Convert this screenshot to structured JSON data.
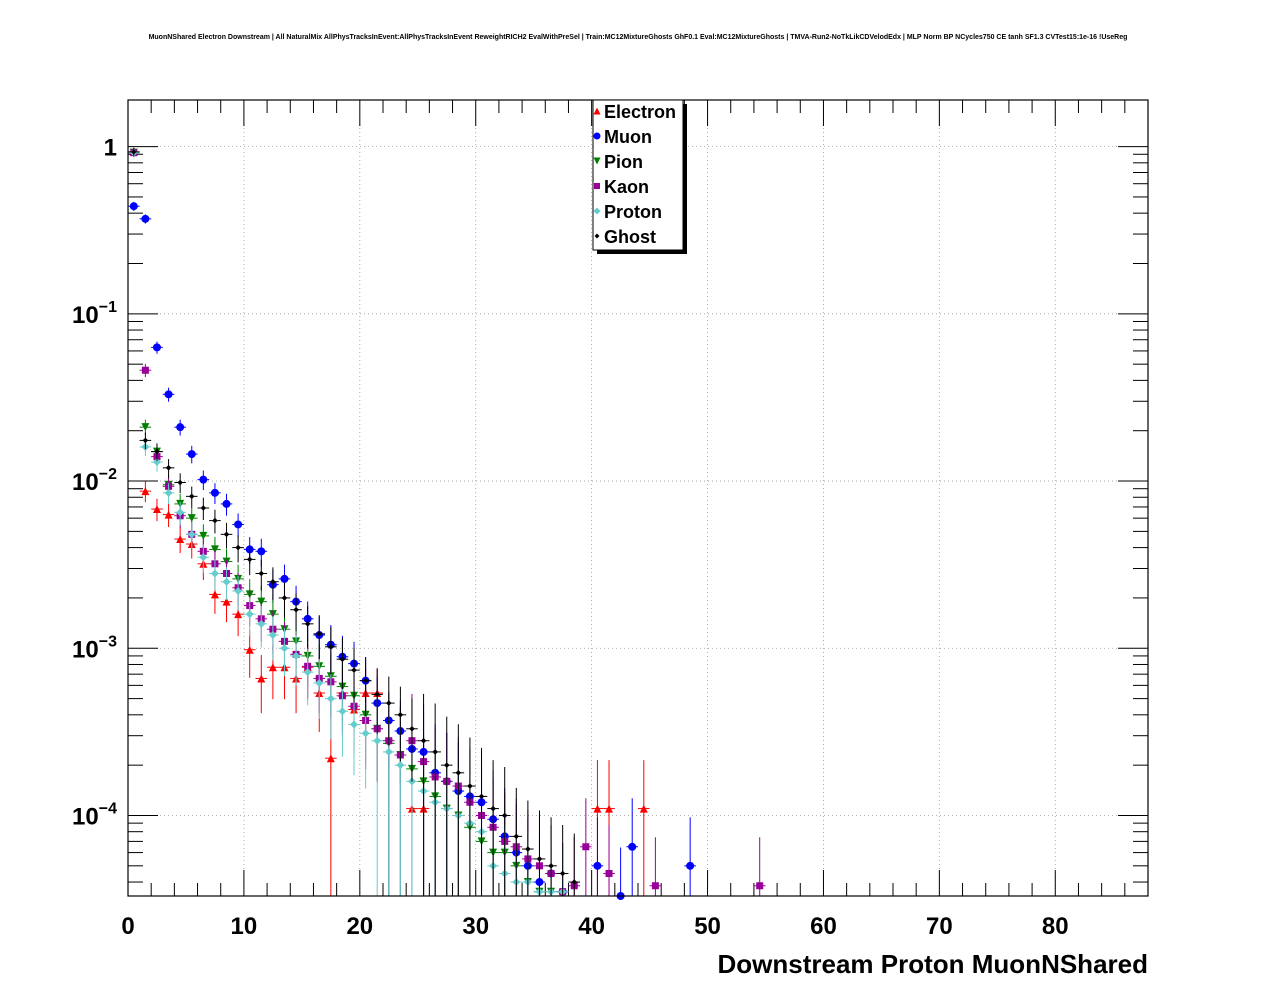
{
  "title": "MuonNShared Electron Downstream | All NaturalMix AllPhysTracksInEvent:AllPhysTracksInEvent ReweightRICH2 EvalWithPreSel | Train:MC12MixtureGhosts GhF0.1 Eval:MC12MixtureGhosts | TMVA-Run2-NoTkLikCDVelodEdx | MLP Norm BP NCycles750 CE tanh SF1.3 CVTest15:1e-16 !UseReg",
  "chart_data": {
    "type": "scatter",
    "title": "MuonNShared Electron Downstream | All NaturalMix AllPhysTracksInEvent:AllPhysTracksInEvent ReweightRICH2 EvalWithPreSel | Train:MC12MixtureGhosts GhF0.1 Eval:MC12MixtureGhosts | TMVA-Run2-NoTkLikCDVelodEdx | MLP Norm BP NCycles750 CE tanh SF1.3 CVTest15:1e-16 !UseReg",
    "xlabel": "Downstream Proton MuonNShared",
    "ylabel": "",
    "xlim": [
      0,
      88
    ],
    "ylim": [
      3.3e-05,
      1.9
    ],
    "yscale": "log",
    "grid": true,
    "legend_position": "top-center",
    "x_ticks": [
      "0",
      "10",
      "20",
      "30",
      "40",
      "50",
      "60",
      "70",
      "80"
    ],
    "y_ticks": [
      {
        "value": 1,
        "label": "1"
      },
      {
        "value": 0.1,
        "label": "10",
        "exp": "−1"
      },
      {
        "value": 0.01,
        "label": "10",
        "exp": "−2"
      },
      {
        "value": 0.001,
        "label": "10",
        "exp": "−3"
      },
      {
        "value": 0.0001,
        "label": "10",
        "exp": "−4"
      }
    ],
    "series": [
      {
        "name": "Electron",
        "color": "#ff0000",
        "marker": "triangle-up",
        "x": [
          0,
          1,
          2,
          3,
          4,
          5,
          6,
          7,
          8,
          9,
          10,
          11,
          12,
          13,
          14,
          15,
          16,
          17,
          18,
          19,
          20,
          21,
          24,
          25,
          40,
          41,
          44
        ],
        "y": [
          0.93,
          0.0087,
          0.0068,
          0.0063,
          0.0045,
          0.0042,
          0.0032,
          0.0021,
          0.0019,
          0.0016,
          0.00098,
          0.00066,
          0.00077,
          0.00077,
          0.00066,
          0.00077,
          0.00054,
          0.00022,
          0.00054,
          0.00043,
          0.00054,
          0.00054,
          0.00011,
          0.00011,
          0.00011,
          0.00011,
          0.00011
        ]
      },
      {
        "name": "Muon",
        "color": "#0000ff",
        "marker": "circle",
        "x": [
          0,
          1,
          2,
          3,
          4,
          5,
          6,
          7,
          8,
          9,
          10,
          11,
          12,
          13,
          14,
          15,
          16,
          17,
          18,
          19,
          20,
          21,
          22,
          23,
          24,
          25,
          26,
          27,
          28,
          29,
          30,
          31,
          32,
          33,
          34,
          35,
          36,
          37,
          38,
          40,
          42,
          43,
          48
        ],
        "y": [
          0.44,
          0.37,
          0.063,
          0.033,
          0.021,
          0.0145,
          0.0102,
          0.0085,
          0.0073,
          0.0055,
          0.0039,
          0.0038,
          0.0024,
          0.0026,
          0.0019,
          0.0015,
          0.0012,
          0.00105,
          0.00089,
          0.00081,
          0.00064,
          0.00047,
          0.00037,
          0.00032,
          0.00025,
          0.00024,
          0.00018,
          0.00016,
          0.00014,
          0.00013,
          0.00012,
          9.5e-05,
          7.5e-05,
          6e-05,
          5e-05,
          4e-05,
          4.5e-05,
          3.5e-05,
          3e-05,
          5e-05,
          3.3e-05,
          6.5e-05,
          5e-05
        ]
      },
      {
        "name": "Pion",
        "color": "#008000",
        "marker": "triangle-down",
        "x": [
          0,
          1,
          2,
          3,
          4,
          5,
          6,
          7,
          8,
          9,
          10,
          11,
          12,
          13,
          14,
          15,
          16,
          17,
          18,
          19,
          20,
          21,
          22,
          23,
          24,
          25,
          26,
          27,
          28,
          29,
          30,
          31,
          32,
          33,
          34,
          35,
          36,
          37
        ],
        "y": [
          0.92,
          0.021,
          0.015,
          0.0095,
          0.0073,
          0.006,
          0.0047,
          0.0039,
          0.0033,
          0.0026,
          0.0021,
          0.0019,
          0.0016,
          0.0013,
          0.0011,
          0.0009,
          0.00078,
          0.00068,
          0.00059,
          0.00052,
          0.0004,
          0.00033,
          0.00027,
          0.00023,
          0.00019,
          0.00016,
          0.00013,
          0.00011,
          0.0001,
          8.5e-05,
          7e-05,
          6e-05,
          6e-05,
          5e-05,
          4e-05,
          3.5e-05,
          3.5e-05,
          3e-05
        ]
      },
      {
        "name": "Kaon",
        "color": "#990099",
        "marker": "square",
        "x": [
          0,
          1,
          2,
          3,
          4,
          5,
          6,
          7,
          8,
          9,
          10,
          11,
          12,
          13,
          14,
          15,
          16,
          17,
          18,
          19,
          20,
          21,
          22,
          23,
          24,
          25,
          26,
          27,
          28,
          29,
          30,
          31,
          32,
          33,
          34,
          35,
          36,
          37,
          38,
          39,
          41,
          45,
          54
        ],
        "y": [
          0.92,
          0.046,
          0.014,
          0.0093,
          0.0062,
          0.0048,
          0.0038,
          0.0032,
          0.0028,
          0.0023,
          0.0018,
          0.0015,
          0.0013,
          0.0011,
          0.00092,
          0.00078,
          0.00066,
          0.00063,
          0.00052,
          0.00045,
          0.00037,
          0.00033,
          0.00028,
          0.00023,
          0.00028,
          0.00021,
          0.00017,
          0.00016,
          0.00015,
          0.00012,
          0.0001,
          8.5e-05,
          7e-05,
          6.5e-05,
          5.5e-05,
          5e-05,
          4.5e-05,
          3.5e-05,
          3.8e-05,
          6.5e-05,
          4.5e-05,
          3.8e-05,
          3.8e-05
        ]
      },
      {
        "name": "Proton",
        "color": "#66cccc",
        "marker": "diamond",
        "x": [
          0,
          1,
          2,
          3,
          4,
          5,
          6,
          7,
          8,
          9,
          10,
          11,
          12,
          13,
          14,
          15,
          16,
          17,
          18,
          19,
          20,
          21,
          22,
          23,
          24,
          25,
          26,
          27,
          28,
          29,
          30,
          31,
          32,
          33,
          34,
          35,
          36,
          37
        ],
        "y": [
          0.92,
          0.016,
          0.013,
          0.0085,
          0.0065,
          0.0048,
          0.0035,
          0.0028,
          0.0025,
          0.0022,
          0.0016,
          0.0014,
          0.0012,
          0.001,
          0.0009,
          0.00072,
          0.00062,
          0.0005,
          0.00042,
          0.00035,
          0.00031,
          0.00028,
          0.00024,
          0.0002,
          0.00016,
          0.00014,
          0.00012,
          0.00011,
          0.0001,
          9e-05,
          8e-05,
          5e-05,
          4.5e-05,
          4e-05,
          4e-05,
          3.5e-05,
          3.5e-05,
          3.5e-05
        ]
      },
      {
        "name": "Ghost",
        "color": "#000000",
        "marker": "small-diamond",
        "x": [
          0,
          1,
          2,
          3,
          4,
          5,
          6,
          7,
          8,
          9,
          10,
          11,
          12,
          13,
          14,
          15,
          16,
          17,
          18,
          19,
          20,
          21,
          22,
          23,
          24,
          25,
          26,
          27,
          28,
          29,
          30,
          31,
          32,
          33,
          34,
          35,
          36,
          37,
          38
        ],
        "y": [
          0.93,
          0.0175,
          0.015,
          0.012,
          0.0098,
          0.0081,
          0.0069,
          0.0058,
          0.0048,
          0.004,
          0.0034,
          0.0028,
          0.0025,
          0.002,
          0.0017,
          0.0014,
          0.00122,
          0.00102,
          0.00086,
          0.00074,
          0.00064,
          0.00053,
          0.00047,
          0.0004,
          0.00033,
          0.00028,
          0.00024,
          0.0002,
          0.00018,
          0.00015,
          0.00013,
          0.00011,
          0.0001,
          7.5e-05,
          6.3e-05,
          5.5e-05,
          5e-05,
          4.5e-05,
          4e-05
        ]
      }
    ]
  }
}
